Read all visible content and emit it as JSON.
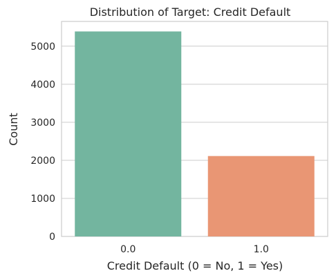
{
  "chart_data": {
    "type": "bar",
    "title": "Distribution of Target: Credit Default",
    "xlabel": "Credit Default (0 = No, 1 = Yes)",
    "ylabel": "Count",
    "categories": [
      "0.0",
      "1.0"
    ],
    "values": [
      5387,
      2113
    ],
    "ylim": [
      0,
      5650
    ],
    "yticks": [
      0,
      1000,
      2000,
      3000,
      4000,
      5000
    ],
    "grid": true,
    "colors": [
      "#73b59f",
      "#e99674"
    ]
  }
}
